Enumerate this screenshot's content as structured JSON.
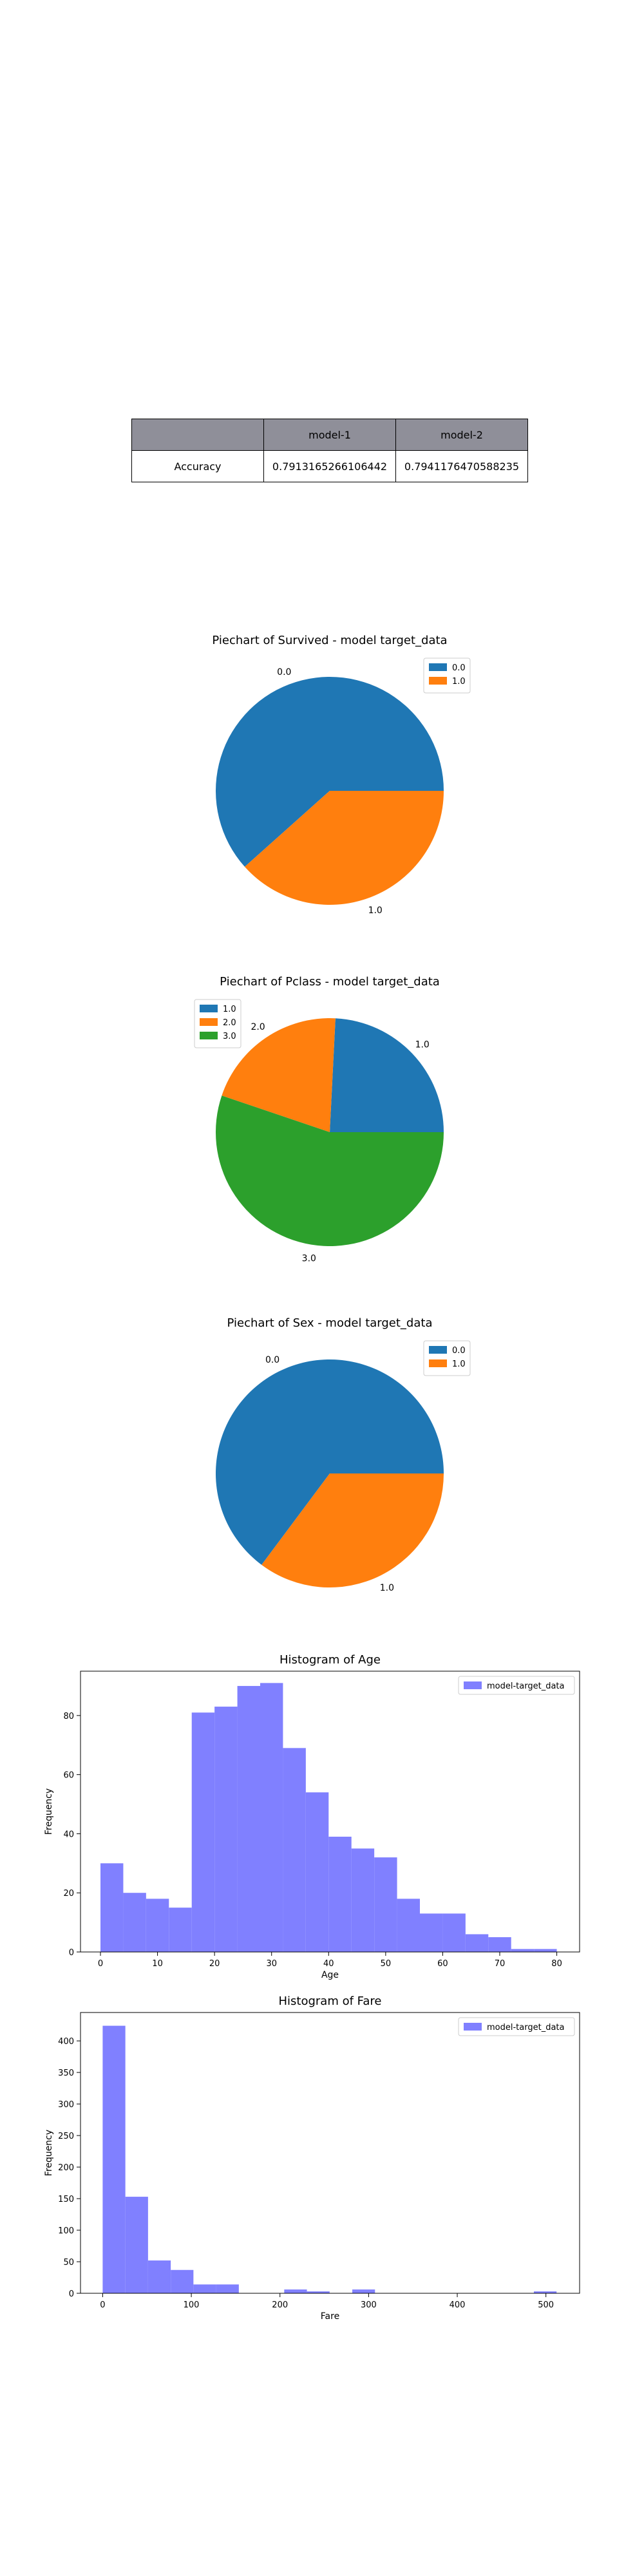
{
  "table": {
    "headers": [
      "",
      "model-1",
      "model-2"
    ],
    "rows": [
      [
        "Accuracy",
        "0.7913165266106442",
        "0.7941176470588235"
      ]
    ]
  },
  "colors": {
    "c0": "#1f77b4",
    "c1": "#ff7f0e",
    "c2": "#2ca02c",
    "hist": "#8080ff"
  },
  "chart_data": [
    {
      "type": "pie",
      "title": "Piechart of Survived - model target_data",
      "categories": [
        "0.0",
        "1.0"
      ],
      "values": [
        61.6,
        38.4
      ],
      "legend": "top-right"
    },
    {
      "type": "pie",
      "title": "Piechart of Pclass - model target_data",
      "categories": [
        "1.0",
        "2.0",
        "3.0"
      ],
      "values": [
        24.2,
        20.6,
        55.2
      ],
      "legend": "top-left"
    },
    {
      "type": "pie",
      "title": "Piechart of Sex - model target_data",
      "categories": [
        "0.0",
        "1.0"
      ],
      "values": [
        64.8,
        35.2
      ],
      "legend": "top-right"
    },
    {
      "type": "bar",
      "title": "Histogram of Age",
      "xlabel": "Age",
      "ylabel": "Frequency",
      "bin_edges": [
        0,
        4,
        8,
        12,
        16,
        20,
        24,
        28,
        32,
        36,
        40,
        44,
        48,
        52,
        56,
        60,
        64,
        68,
        72,
        76,
        80
      ],
      "values": [
        30,
        20,
        18,
        15,
        81,
        83,
        90,
        91,
        69,
        54,
        39,
        35,
        32,
        18,
        13,
        13,
        6,
        5,
        1,
        1
      ],
      "xlim": [
        -3.5,
        84
      ],
      "ylim": [
        0,
        95
      ],
      "xticks": [
        0,
        10,
        20,
        30,
        40,
        50,
        60,
        70,
        80
      ],
      "yticks": [
        0,
        20,
        40,
        60,
        80
      ],
      "series": [
        {
          "name": "model-target_data"
        }
      ],
      "legend": "top-right"
    },
    {
      "type": "bar",
      "title": "Histogram of Fare",
      "xlabel": "Fare",
      "ylabel": "Frequency",
      "bin_edges": [
        0,
        25.6,
        51.2,
        76.8,
        102.4,
        128,
        153.6,
        179.2,
        204.8,
        230.4,
        256,
        281.6,
        307.2,
        332.8,
        358.4,
        384,
        409.6,
        435.2,
        460.8,
        486.4,
        512
      ],
      "values": [
        424,
        153,
        52,
        37,
        14,
        14,
        0,
        0,
        6,
        3,
        0,
        6,
        0,
        0,
        0,
        0,
        0,
        0,
        0,
        3
      ],
      "xlim": [
        -25,
        538
      ],
      "ylim": [
        0,
        445
      ],
      "xticks": [
        0,
        100,
        200,
        300,
        400,
        500
      ],
      "yticks": [
        0,
        50,
        100,
        150,
        200,
        250,
        300,
        350,
        400
      ],
      "series": [
        {
          "name": "model-target_data"
        }
      ],
      "legend": "top-right"
    }
  ]
}
